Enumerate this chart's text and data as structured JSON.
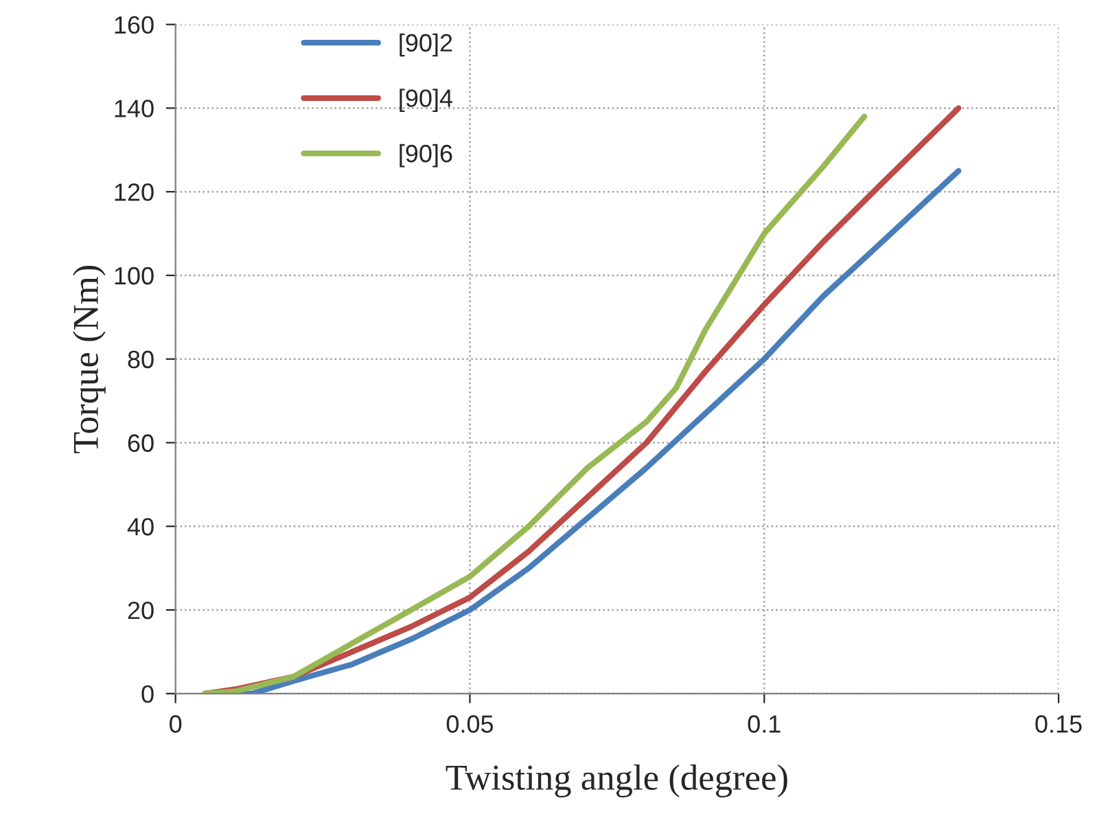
{
  "chart_data": {
    "type": "line",
    "xlabel": "Twisting angle (degree)",
    "ylabel": "Torque (Nm)",
    "xlim": [
      0,
      0.15
    ],
    "xticks": [
      0,
      0.05,
      0.1,
      0.15
    ],
    "ylim": [
      0,
      160
    ],
    "yticks": [
      0,
      20,
      40,
      60,
      80,
      100,
      120,
      140,
      160
    ],
    "grid": true,
    "legend": "top left",
    "marker": "none",
    "line_style": "solid",
    "series": [
      {
        "name": "[90]2",
        "color": "#4a7ebb",
        "x": [
          0.005,
          0.013,
          0.02,
          0.03,
          0.04,
          0.05,
          0.06,
          0.07,
          0.08,
          0.09,
          0.1,
          0.11,
          0.12,
          0.133
        ],
        "values": [
          0,
          0,
          3,
          7,
          13,
          20,
          30,
          42,
          54,
          67,
          80,
          95,
          108,
          125
        ]
      },
      {
        "name": "[90]4",
        "color": "#be4b48",
        "x": [
          0.005,
          0.01,
          0.02,
          0.03,
          0.04,
          0.05,
          0.06,
          0.07,
          0.08,
          0.09,
          0.1,
          0.11,
          0.12,
          0.133
        ],
        "values": [
          0,
          1,
          4,
          10,
          16,
          23,
          34,
          47,
          60,
          77,
          93,
          108,
          122,
          140
        ]
      },
      {
        "name": "[90]6",
        "color": "#98b954",
        "x": [
          0.005,
          0.01,
          0.02,
          0.03,
          0.04,
          0.05,
          0.06,
          0.07,
          0.08,
          0.085,
          0.09,
          0.1,
          0.11,
          0.117
        ],
        "values": [
          0,
          0.5,
          4,
          12,
          20,
          28,
          40,
          54,
          65,
          73,
          87,
          110,
          126,
          138
        ]
      }
    ]
  }
}
